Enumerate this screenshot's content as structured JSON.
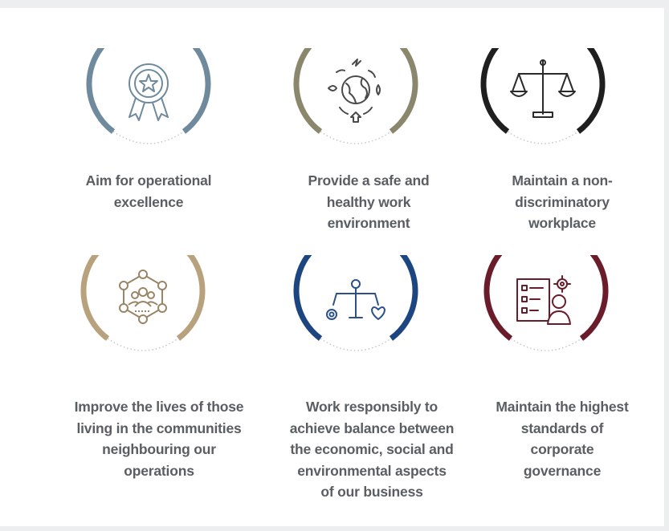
{
  "colors": {
    "ring_steel": "#6f8a9c",
    "ring_olive": "#8b876c",
    "ring_black": "#1f1f1f",
    "ring_sand": "#b8a17d",
    "ring_navy": "#1d4580",
    "ring_maroon": "#6b1c2a",
    "text": "#5a5e63"
  },
  "items": [
    {
      "icon": "award-ribbon-icon",
      "lines": [
        "Aim for operational",
        "excellence"
      ]
    },
    {
      "icon": "globe-cycle-icon",
      "lines": [
        "Provide a safe and",
        "healthy work",
        "environment"
      ]
    },
    {
      "icon": "scales-icon",
      "lines": [
        "Maintain a non-",
        "discriminatory",
        "workplace"
      ]
    },
    {
      "icon": "community-network-icon",
      "lines": [
        "Improve the lives of those",
        "living in the communities",
        "neighbouring our",
        "operations"
      ]
    },
    {
      "icon": "balance-person-icon",
      "lines": [
        "Work responsibly to",
        "achieve balance between",
        "the economic, social and",
        "environmental aspects",
        "of our business"
      ]
    },
    {
      "icon": "checklist-person-icon",
      "lines": [
        "Maintain the highest",
        "standards of",
        "corporate",
        "governance"
      ]
    }
  ]
}
